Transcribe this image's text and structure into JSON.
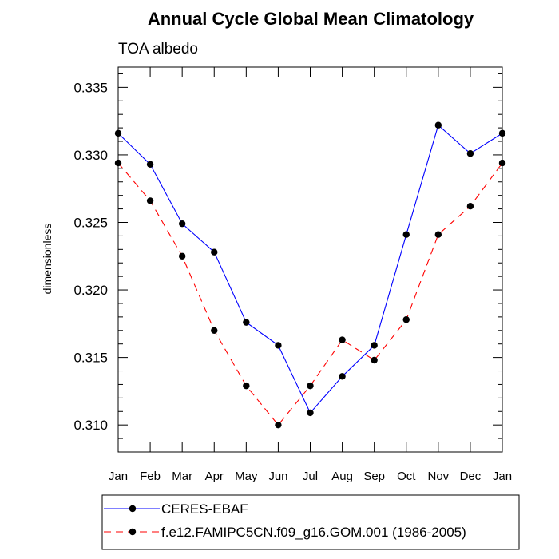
{
  "chart_data": {
    "type": "line",
    "title": "Annual Cycle Global Mean Climatology",
    "subtitle": "TOA albedo",
    "xlabel": "",
    "ylabel": "dimensionless",
    "categories": [
      "Jan",
      "Feb",
      "Mar",
      "Apr",
      "May",
      "Jun",
      "Jul",
      "Aug",
      "Sep",
      "Oct",
      "Nov",
      "Dec",
      "Jan"
    ],
    "ylim": [
      0.308,
      0.3365
    ],
    "yticks": [
      0.31,
      0.315,
      0.32,
      0.325,
      0.33,
      0.335
    ],
    "ytick_labels": [
      "0.310",
      "0.315",
      "0.320",
      "0.325",
      "0.330",
      "0.335"
    ],
    "series": [
      {
        "name": "CERES-EBAF",
        "color": "#0000ff",
        "dash": "solid",
        "values": [
          0.3316,
          0.3293,
          0.3249,
          0.3228,
          0.3176,
          0.3159,
          0.3109,
          0.3136,
          0.3159,
          0.3241,
          0.3322,
          0.3301,
          0.3316
        ]
      },
      {
        "name": "f.e12.FAMIPC5CN.f09_g16.GOM.001 (1986-2005)",
        "color": "#ff0000",
        "dash": "dashed",
        "values": [
          0.3294,
          0.3266,
          0.3225,
          0.317,
          0.3129,
          0.31,
          0.3129,
          0.3163,
          0.3148,
          0.3178,
          0.3241,
          0.3262,
          0.3294
        ]
      }
    ],
    "legend_position": "bottom"
  }
}
